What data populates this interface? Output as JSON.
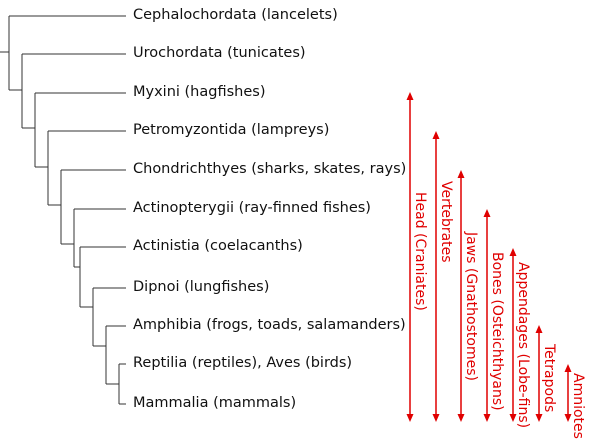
{
  "taxa": [
    "Cephalochordata (lancelets)",
    "Urochordata (tunicates)",
    "Myxini (hagfishes)",
    "Petromyzontida (lampreys)",
    "Chondrichthyes (sharks, skates, rays)",
    "Actinopterygii (ray-finned fishes)",
    "Actinistia (coelacanths)",
    "Dipnoi (lungfishes)",
    "Amphibia (frogs, toads, salamanders)",
    "Reptilia (reptiles), Aves (birds)",
    "Mammalia (mammals)"
  ],
  "traits": [
    {
      "label": "Head (Craniates)",
      "from_taxon": 2
    },
    {
      "label": "Vertebrates",
      "from_taxon": 3
    },
    {
      "label": "Jaws (Gnathostomes)",
      "from_taxon": 4
    },
    {
      "label": "Bones (Osteichthyans)",
      "from_taxon": 5
    },
    {
      "label": "Appendages (Lobe-fins)",
      "from_taxon": 6
    },
    {
      "label": "Tetrapods",
      "from_taxon": 8
    },
    {
      "label": "Amniotes",
      "from_taxon": 9
    }
  ],
  "colors": {
    "tree": "#333333",
    "trait": "#e00000",
    "text": "#111111"
  }
}
